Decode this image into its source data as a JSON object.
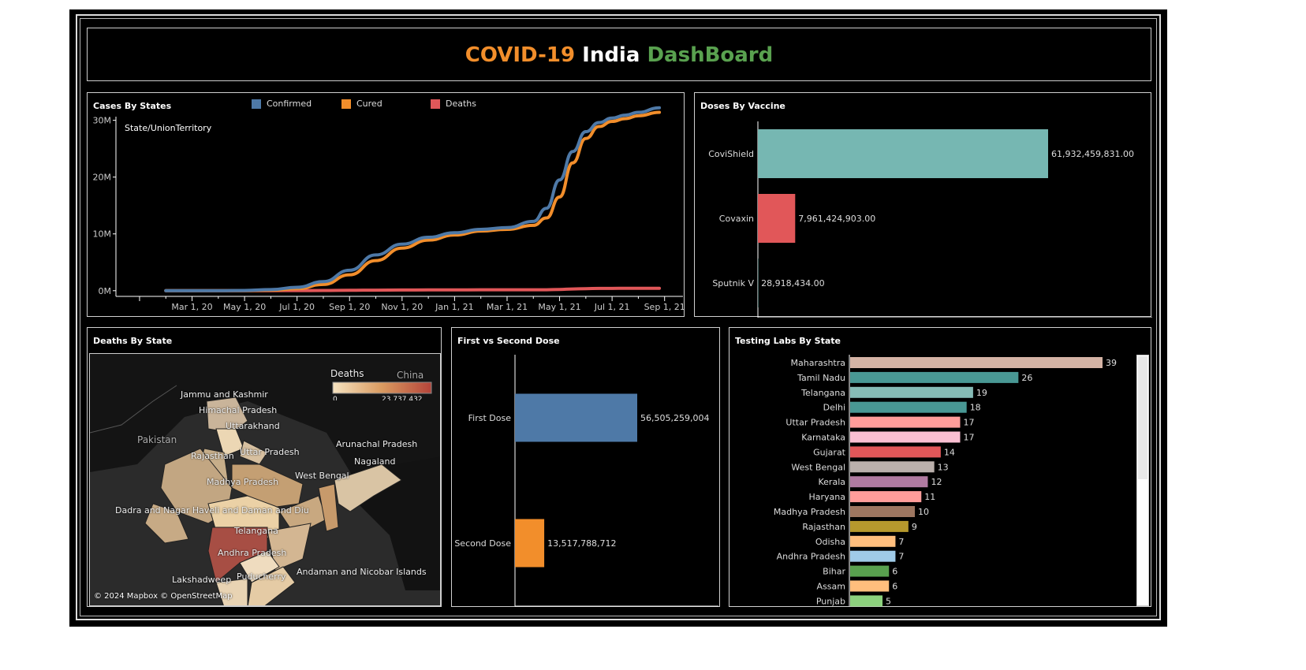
{
  "title": {
    "part1": "COVID-19",
    "part2": "India",
    "part3": "DashBoard"
  },
  "colors": {
    "confirmed": "#4e79a7",
    "cured": "#f28e2b",
    "deaths": "#e15759",
    "covishield": "#76b7b2",
    "covaxin": "#e15759",
    "first": "#4e79a7",
    "second": "#f28e2b"
  },
  "cases": {
    "title": "Cases By States",
    "pane_label": "State/UnionTerritory",
    "legend": [
      {
        "name": "Confirmed",
        "color": "#4e79a7"
      },
      {
        "name": "Cured",
        "color": "#f28e2b"
      },
      {
        "name": "Deaths",
        "color": "#e15759"
      }
    ]
  },
  "doses": {
    "title": "Doses By Vaccine"
  },
  "map": {
    "title": "Deaths By State",
    "legend_title": "Deaths",
    "legend_min": "0",
    "legend_max": "23,737,432",
    "attribution": "© 2024 Mapbox © OpenStreetMap",
    "labels": [
      "Jammu and Kashmir",
      "Himachal Pradesh",
      "Uttarakhand",
      "Pakistan",
      "Rajasthan",
      "Uttar Pradesh",
      "Arunachal Pradesh",
      "Nagaland",
      "West Bengal",
      "Madhya Pradesh",
      "Dadra and Nagar Haveli and Daman and Diu",
      "Telangana",
      "Andhra Pradesh",
      "Lakshadweep",
      "Puducherry",
      "Andaman and Nicobar Islands",
      "China"
    ]
  },
  "dose_cmp": {
    "title": "First vs Second Dose"
  },
  "labs": {
    "title": "Testing Labs By State"
  },
  "chart_data": [
    {
      "type": "line",
      "title": "Cases By States",
      "xlabel": "",
      "ylabel": "",
      "x_unit": "months since Jan 1, 2020",
      "x_ticks": [
        "Mar 1, 20",
        "May 1, 20",
        "Jul 1, 20",
        "Sep 1, 20",
        "Nov 1, 20",
        "Jan 1, 21",
        "Mar 1, 21",
        "May 1, 21",
        "Jul 1, 21",
        "Sep 1, 21"
      ],
      "x_tick_values": [
        2,
        4,
        6,
        8,
        10,
        12,
        14,
        16,
        18,
        20
      ],
      "y_ticks": [
        "0M",
        "10M",
        "20M",
        "30M"
      ],
      "y_tick_values": [
        0,
        10,
        20,
        30
      ],
      "ylim": [
        -1,
        33
      ],
      "xlim": [
        -0.9,
        20.7
      ],
      "x": [
        1,
        2,
        3,
        4,
        5,
        6,
        7,
        8,
        9,
        10,
        11,
        12,
        13,
        14,
        15,
        15.5,
        16,
        16.5,
        17,
        17.5,
        18,
        18.5,
        19,
        19.8
      ],
      "series": [
        {
          "name": "Confirmed",
          "values": [
            0,
            0,
            0.01,
            0.04,
            0.2,
            0.6,
            1.6,
            3.6,
            6.3,
            8.2,
            9.4,
            10.2,
            10.8,
            11.1,
            12.2,
            14.5,
            19.5,
            24.5,
            28.0,
            29.6,
            30.4,
            30.9,
            31.4,
            32.2
          ]
        },
        {
          "name": "Cured",
          "values": [
            0,
            0,
            0,
            0.01,
            0.09,
            0.35,
            1.1,
            2.8,
            5.3,
            7.5,
            8.9,
            9.8,
            10.5,
            10.8,
            11.5,
            12.8,
            16.5,
            22.5,
            26.8,
            28.9,
            29.8,
            30.3,
            30.8,
            31.4
          ]
        },
        {
          "name": "Deaths",
          "values": [
            0,
            0,
            0,
            0,
            0.01,
            0.02,
            0.04,
            0.07,
            0.1,
            0.12,
            0.14,
            0.15,
            0.155,
            0.158,
            0.16,
            0.17,
            0.22,
            0.3,
            0.36,
            0.4,
            0.41,
            0.42,
            0.425,
            0.43
          ]
        }
      ]
    },
    {
      "type": "bar",
      "title": "Doses By Vaccine",
      "orientation": "horizontal",
      "categories": [
        "CoviShield",
        "Covaxin",
        "Sputnik V"
      ],
      "values": [
        61932459831,
        7961424903,
        28918434
      ],
      "labels": [
        "61,932,459,831.00",
        "7,961,424,903.00",
        "28,918,434.00"
      ],
      "colors": [
        "#76b7b2",
        "#e15759",
        "#76b7b2"
      ]
    },
    {
      "type": "bar",
      "title": "First vs Second Dose",
      "orientation": "horizontal",
      "categories": [
        "First Dose",
        "Second Dose"
      ],
      "values": [
        56505259004,
        13517788712
      ],
      "labels": [
        "56,505,259,004",
        "13,517,788,712"
      ],
      "colors": [
        "#4e79a7",
        "#f28e2b"
      ]
    },
    {
      "type": "bar",
      "title": "Testing Labs By State",
      "orientation": "horizontal",
      "categories": [
        "Maharashtra",
        "Tamil Nadu",
        "Telangana",
        "Delhi",
        "Uttar Pradesh",
        "Karnataka",
        "Gujarat",
        "West Bengal",
        "Kerala",
        "Haryana",
        "Madhya Pradesh",
        "Rajasthan",
        "Odisha",
        "Andhra Pradesh",
        "Bihar",
        "Assam",
        "Punjab"
      ],
      "values": [
        39,
        26,
        19,
        18,
        17,
        17,
        14,
        13,
        12,
        11,
        10,
        9,
        7,
        7,
        6,
        6,
        5
      ],
      "colors": [
        "#d4b3a5",
        "#499894",
        "#86bcb6",
        "#499894",
        "#ff9d9a",
        "#fabfd2",
        "#e15759",
        "#bab0ac",
        "#b07aa1",
        "#ff9d9a",
        "#9d7660",
        "#b6992d",
        "#ffbe7d",
        "#a0cbe8",
        "#59a14f",
        "#ffbe7d",
        "#8cd17d"
      ]
    }
  ]
}
